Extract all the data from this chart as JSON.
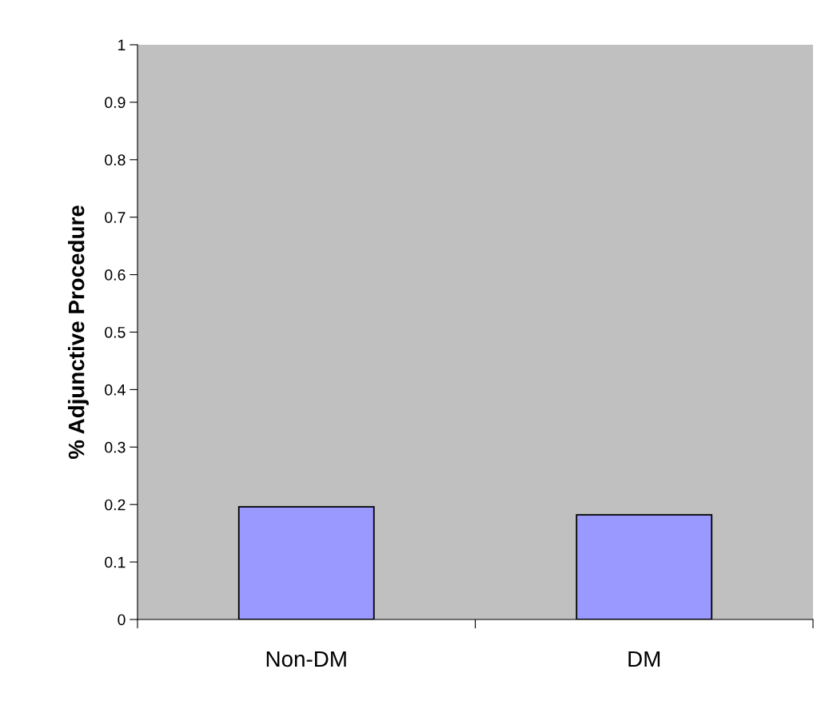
{
  "chart_data": {
    "type": "bar",
    "ylabel": "% Adjunctive Procedure",
    "categories": [
      "Non-DM",
      "DM"
    ],
    "values": [
      0.196,
      0.182
    ],
    "color": "#9999ff",
    "ylim": [
      0,
      1
    ],
    "yticks": [
      0,
      0.1,
      0.2,
      0.3,
      0.4,
      0.5,
      0.6,
      0.7,
      0.8,
      0.9,
      1
    ],
    "grid": false
  }
}
